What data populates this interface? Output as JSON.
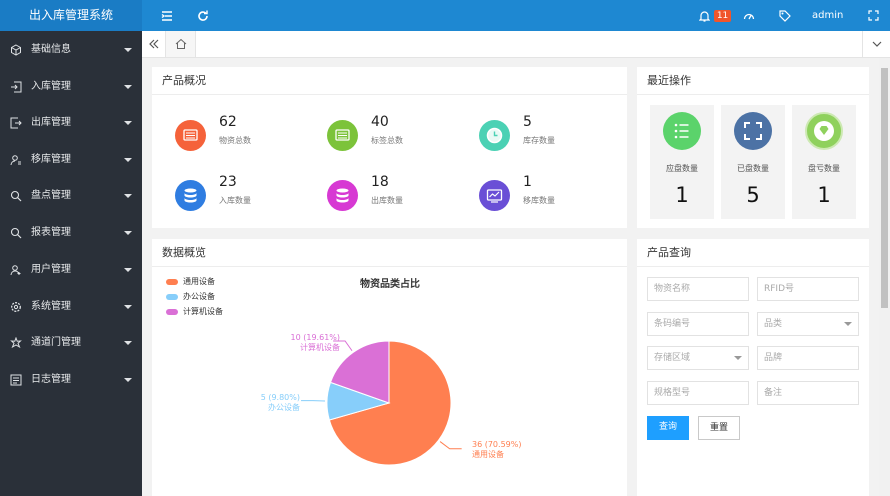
{
  "app": {
    "title": "出入库管理系统"
  },
  "header": {
    "notification_count": "11",
    "user": "admin"
  },
  "sidebar": {
    "items": [
      {
        "label": "基础信息",
        "icon": "cube-icon"
      },
      {
        "label": "入库管理",
        "icon": "inbound-icon"
      },
      {
        "label": "出库管理",
        "icon": "outbound-icon"
      },
      {
        "label": "移库管理",
        "icon": "user-transfer-icon"
      },
      {
        "label": "盘点管理",
        "icon": "search-icon"
      },
      {
        "label": "报表管理",
        "icon": "report-search-icon"
      },
      {
        "label": "用户管理",
        "icon": "user-icon"
      },
      {
        "label": "系统管理",
        "icon": "gear-icon"
      },
      {
        "label": "通道门管理",
        "icon": "gate-icon"
      },
      {
        "label": "日志管理",
        "icon": "log-icon"
      }
    ]
  },
  "overview": {
    "title": "产品概况",
    "stats": [
      {
        "value": "62",
        "label": "物资总数",
        "color": "#f5623a"
      },
      {
        "value": "40",
        "label": "标签总数",
        "color": "#7cc33a"
      },
      {
        "value": "5",
        "label": "库存数量",
        "color": "#4bd1b4"
      },
      {
        "value": "23",
        "label": "入库数量",
        "color": "#2f7de1"
      },
      {
        "value": "18",
        "label": "出库数量",
        "color": "#d739d3"
      },
      {
        "value": "1",
        "label": "移库数量",
        "color": "#6a4fd6"
      }
    ]
  },
  "recent": {
    "title": "最近操作",
    "cards": [
      {
        "label": "应盘数量",
        "value": "1",
        "color": "#5bd36b"
      },
      {
        "label": "已盘数量",
        "value": "5",
        "color": "#4c72a5"
      },
      {
        "label": "盘亏数量",
        "value": "1",
        "color": "#8fd15d"
      }
    ]
  },
  "data_overview": {
    "title": "数据概览",
    "legend": [
      "通用设备",
      "办公设备",
      "计算机设备"
    ],
    "colors": [
      "#ff7f50",
      "#87cefa",
      "#da70d6"
    ],
    "chart_title": "物资品类占比",
    "slice_labels": [
      {
        "value": "36 (70.59%)",
        "name": "通用设备"
      },
      {
        "value": "5 (9.80%)",
        "name": "办公设备"
      },
      {
        "value": "10 (19.61%)",
        "name": "计算机设备"
      }
    ]
  },
  "chart_data": {
    "type": "pie",
    "title": "物资品类占比",
    "legend_position": "top-left",
    "labels": [
      "通用设备",
      "办公设备",
      "计算机设备"
    ],
    "values": [
      36,
      5,
      10
    ],
    "percentages": [
      70.59,
      9.8,
      19.61
    ]
  },
  "query": {
    "title": "产品查询",
    "fields": [
      "物资名称",
      "RFID号",
      "条码编号",
      "品类",
      "存储区域",
      "品牌",
      "规格型号",
      "备注"
    ],
    "search_label": "查询",
    "reset_label": "重置"
  }
}
